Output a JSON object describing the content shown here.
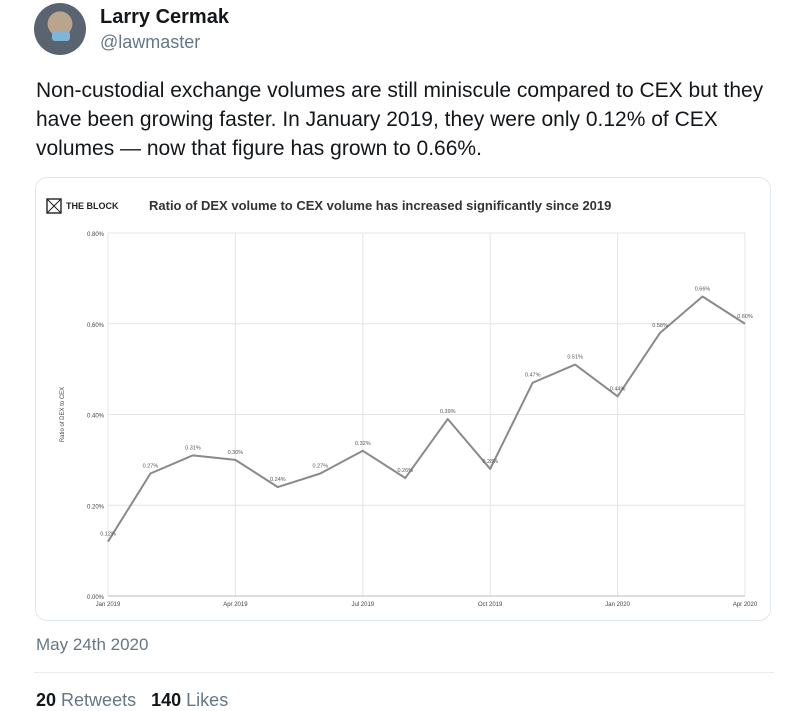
{
  "tweet": {
    "author_name": "Larry Cermak",
    "author_handle": "@lawmaster",
    "text": "Non-custodial exchange volumes are still miniscule compared to CEX but they have been growing faster. In January 2019, they were only 0.12% of CEX volumes — now that figure has grown to 0.66%.",
    "date": "May 24th 2020",
    "retweets_count": "20",
    "retweets_label": "Retweets",
    "likes_count": "140",
    "likes_label": "Likes"
  },
  "card": {
    "logo_text": "THE BLOCK"
  },
  "chart_data": {
    "type": "line",
    "title": "Ratio of DEX volume to CEX volume has increased significantly since 2019",
    "ylabel": "Ratio of DEX to CEX",
    "xlabel": "",
    "ylim": [
      0,
      0.8
    ],
    "y_ticks": [
      "0.00%",
      "0.20%",
      "0.40%",
      "0.60%",
      "0.80%"
    ],
    "x_ticks": [
      "Jan 2019",
      "Apr 2019",
      "Jul 2019",
      "Oct 2019",
      "Jan 2020",
      "Apr 2020"
    ],
    "grid": true,
    "series": [
      {
        "x": [
          0,
          1,
          2,
          3,
          4,
          5,
          6,
          7,
          8,
          9,
          10,
          11,
          12,
          13,
          14,
          15
        ],
        "values": [
          0.12,
          0.27,
          0.31,
          0.3,
          0.24,
          0.27,
          0.32,
          0.26,
          0.39,
          0.28,
          0.47,
          0.51,
          0.44,
          0.58,
          0.66,
          0.6
        ],
        "labels": [
          "0.12%",
          "0.27%",
          "0.31%",
          "0.30%",
          "0.24%",
          "0.27%",
          "0.32%",
          "0.26%",
          "0.39%",
          "0.28%",
          "0.47%",
          "0.51%",
          "0.44%",
          "0.58%",
          "0.66%",
          "0.60%"
        ]
      }
    ],
    "line_color": "#8a8a8a"
  }
}
